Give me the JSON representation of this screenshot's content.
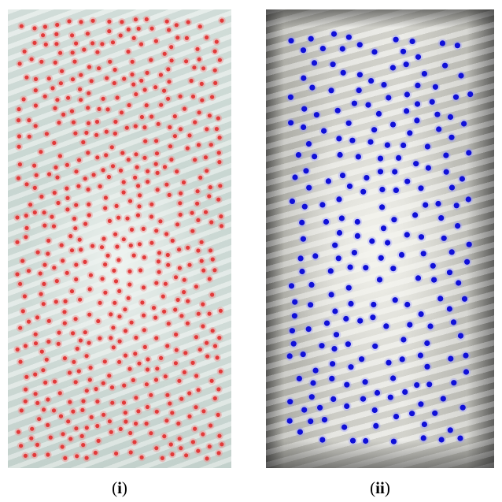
{
  "panels": [
    {
      "id": "i",
      "label": "i",
      "caption_open": "(",
      "caption_close": ")",
      "marker_color": "#e23a3a",
      "marker_count": 560
    },
    {
      "id": "ii",
      "label": "ii",
      "caption_open": "(",
      "caption_close": ")",
      "marker_color": "#1010d8",
      "marker_count": 230
    }
  ]
}
